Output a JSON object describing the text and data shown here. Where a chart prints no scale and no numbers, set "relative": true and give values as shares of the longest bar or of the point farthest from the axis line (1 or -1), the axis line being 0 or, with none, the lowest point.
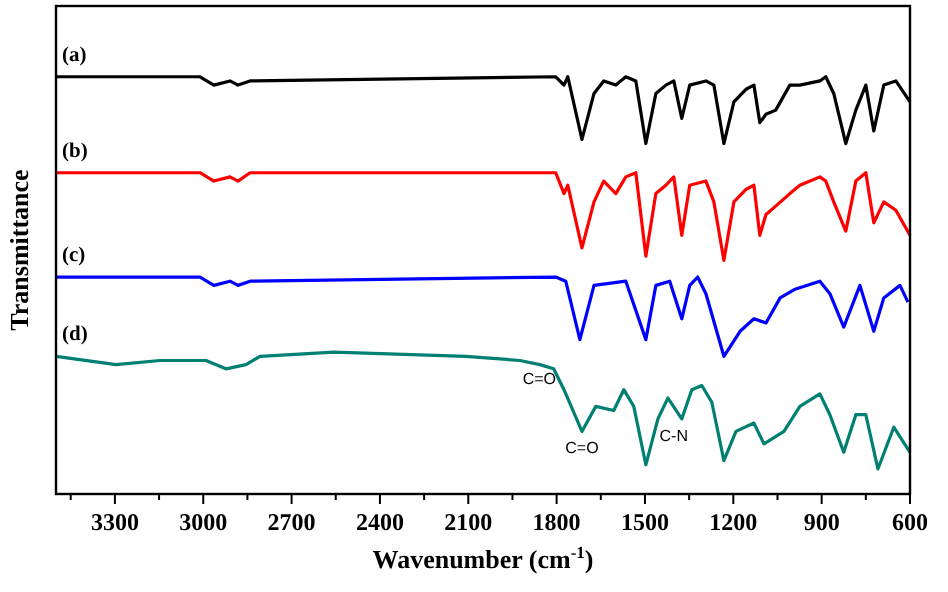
{
  "chart_data": {
    "type": "line",
    "relative": true,
    "xlabel": "Wavenumber (cm$^{-1}$)",
    "ylabel": "Transmittance",
    "xlim": [
      3500,
      600
    ],
    "xticks": [
      {
        "value": 3450,
        "label": null
      },
      3300,
      {
        "value": 3150,
        "label": null
      },
      3000,
      {
        "value": 2850,
        "label": null
      },
      2700,
      {
        "value": 2550,
        "label": null
      },
      2400,
      {
        "value": 2250,
        "label": null
      },
      2100,
      {
        "value": 1950,
        "label": null
      },
      1800,
      {
        "value": 1650,
        "label": null
      },
      1500,
      {
        "value": 1350,
        "label": null
      },
      1200,
      {
        "value": 1050,
        "label": null
      },
      900,
      {
        "value": 750,
        "label": null
      },
      600
    ],
    "legend": false,
    "grid": false,
    "line_style": "solid",
    "marker": "none",
    "series": [
      {
        "name": "(a)",
        "color": "#000000",
        "x": [
          3500,
          3011,
          2964,
          2909,
          2882,
          2841,
          1803,
          1775,
          1762,
          1714,
          1673,
          1640,
          1599,
          1565,
          1531,
          1497,
          1463,
          1429,
          1402,
          1375,
          1348,
          1293,
          1266,
          1232,
          1198,
          1157,
          1130,
          1110,
          1089,
          1056,
          1008,
          974,
          906,
          886,
          859,
          818,
          784,
          750,
          723,
          689,
          648,
          600
        ],
        "values": [
          1.0,
          1.0,
          0.98,
          0.99,
          0.98,
          0.99,
          1.0,
          0.98,
          1.0,
          0.85,
          0.96,
          0.99,
          0.98,
          1.0,
          0.99,
          0.84,
          0.96,
          0.98,
          0.99,
          0.9,
          0.98,
          0.99,
          0.98,
          0.84,
          0.94,
          0.97,
          0.98,
          0.89,
          0.91,
          0.92,
          0.98,
          0.98,
          0.99,
          1.0,
          0.96,
          0.84,
          0.92,
          0.98,
          0.87,
          0.98,
          0.99,
          0.94
        ]
      },
      {
        "name": "(b)",
        "color": "#ff0000",
        "x": [
          3500,
          3011,
          2964,
          2909,
          2882,
          2841,
          1803,
          1775,
          1762,
          1714,
          1673,
          1640,
          1599,
          1565,
          1531,
          1497,
          1463,
          1429,
          1402,
          1375,
          1348,
          1293,
          1266,
          1232,
          1198,
          1157,
          1130,
          1110,
          1089,
          1056,
          1008,
          974,
          906,
          886,
          859,
          818,
          784,
          750,
          723,
          689,
          648,
          600
        ],
        "values": [
          0.77,
          0.77,
          0.75,
          0.76,
          0.75,
          0.77,
          0.77,
          0.72,
          0.74,
          0.59,
          0.7,
          0.75,
          0.72,
          0.76,
          0.77,
          0.57,
          0.72,
          0.74,
          0.76,
          0.62,
          0.74,
          0.75,
          0.7,
          0.56,
          0.7,
          0.73,
          0.74,
          0.62,
          0.67,
          0.69,
          0.72,
          0.74,
          0.76,
          0.75,
          0.7,
          0.63,
          0.75,
          0.77,
          0.65,
          0.7,
          0.68,
          0.62
        ]
      },
      {
        "name": "(c)",
        "color": "#0000ff",
        "x": [
          3500,
          3011,
          2964,
          2909,
          2882,
          2841,
          1803,
          1769,
          1721,
          1673,
          1565,
          1497,
          1463,
          1416,
          1375,
          1348,
          1321,
          1293,
          1232,
          1177,
          1130,
          1089,
          1041,
          993,
          906,
          872,
          825,
          770,
          723,
          689,
          634,
          607
        ],
        "values": [
          0.52,
          0.52,
          0.5,
          0.51,
          0.5,
          0.51,
          0.52,
          0.51,
          0.37,
          0.5,
          0.51,
          0.37,
          0.5,
          0.51,
          0.42,
          0.5,
          0.52,
          0.48,
          0.33,
          0.39,
          0.42,
          0.41,
          0.47,
          0.49,
          0.51,
          0.48,
          0.4,
          0.5,
          0.39,
          0.47,
          0.5,
          0.46
        ]
      },
      {
        "name": "(d)",
        "color": "#007f73",
        "x": [
          3500,
          3296,
          3147,
          2991,
          2923,
          2855,
          2807,
          2556,
          2108,
          1925,
          1857,
          1810,
          1775,
          1714,
          1667,
          1606,
          1572,
          1538,
          1497,
          1456,
          1422,
          1375,
          1341,
          1307,
          1273,
          1232,
          1191,
          1130,
          1096,
          1028,
          974,
          906,
          872,
          825,
          784,
          750,
          709,
          655,
          600
        ],
        "values": [
          0.33,
          0.31,
          0.32,
          0.32,
          0.3,
          0.31,
          0.33,
          0.34,
          0.33,
          0.32,
          0.31,
          0.3,
          0.25,
          0.15,
          0.21,
          0.2,
          0.25,
          0.21,
          0.07,
          0.18,
          0.23,
          0.18,
          0.25,
          0.26,
          0.22,
          0.08,
          0.15,
          0.17,
          0.12,
          0.15,
          0.21,
          0.24,
          0.19,
          0.1,
          0.19,
          0.19,
          0.06,
          0.16,
          0.1
        ]
      }
    ],
    "annotations": [
      {
        "text": "C=O",
        "x": 1775,
        "y": 0.25
      },
      {
        "text": "C=O",
        "x": 1714,
        "y": 0.15
      },
      {
        "text": "C-N",
        "x": 1375,
        "y": 0.18
      }
    ]
  }
}
